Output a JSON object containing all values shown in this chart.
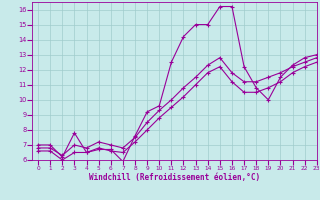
{
  "xlabel": "Windchill (Refroidissement éolien,°C)",
  "bg_color": "#c8eaea",
  "grid_color": "#a0cccc",
  "line_color": "#990099",
  "xlim": [
    -0.5,
    23
  ],
  "ylim": [
    6,
    16.5
  ],
  "xticks": [
    0,
    1,
    2,
    3,
    4,
    5,
    6,
    7,
    8,
    9,
    10,
    11,
    12,
    13,
    14,
    15,
    16,
    17,
    18,
    19,
    20,
    21,
    22,
    23
  ],
  "yticks": [
    6,
    7,
    8,
    9,
    10,
    11,
    12,
    13,
    14,
    15,
    16
  ],
  "line1_x": [
    0,
    1,
    2,
    3,
    4,
    5,
    6,
    7,
    8,
    9,
    10,
    11,
    12,
    13,
    14,
    15,
    16,
    17,
    18,
    19,
    20,
    21,
    22,
    23
  ],
  "line1_y": [
    7.0,
    7.0,
    6.2,
    7.8,
    6.5,
    6.7,
    6.7,
    5.9,
    7.6,
    9.2,
    9.6,
    12.5,
    14.2,
    15.0,
    15.0,
    16.2,
    16.2,
    12.2,
    10.8,
    10.0,
    11.5,
    12.3,
    12.8,
    13.0
  ],
  "line2_x": [
    0,
    1,
    2,
    3,
    4,
    5,
    6,
    7,
    8,
    9,
    10,
    11,
    12,
    13,
    14,
    15,
    16,
    17,
    18,
    19,
    20,
    21,
    22,
    23
  ],
  "line2_y": [
    6.8,
    6.8,
    6.3,
    7.0,
    6.8,
    7.2,
    7.0,
    6.8,
    7.5,
    8.5,
    9.3,
    10.0,
    10.8,
    11.5,
    12.3,
    12.8,
    11.8,
    11.2,
    11.2,
    11.5,
    11.8,
    12.2,
    12.5,
    12.8
  ],
  "line3_x": [
    0,
    1,
    2,
    3,
    4,
    5,
    6,
    7,
    8,
    9,
    10,
    11,
    12,
    13,
    14,
    15,
    16,
    17,
    18,
    19,
    20,
    21,
    22,
    23
  ],
  "line3_y": [
    6.6,
    6.6,
    6.0,
    6.5,
    6.5,
    6.8,
    6.6,
    6.5,
    7.2,
    8.0,
    8.8,
    9.5,
    10.2,
    11.0,
    11.8,
    12.2,
    11.2,
    10.5,
    10.5,
    10.8,
    11.2,
    11.8,
    12.2,
    12.5
  ],
  "marker": "+",
  "markersize": 3,
  "linewidth": 0.8
}
